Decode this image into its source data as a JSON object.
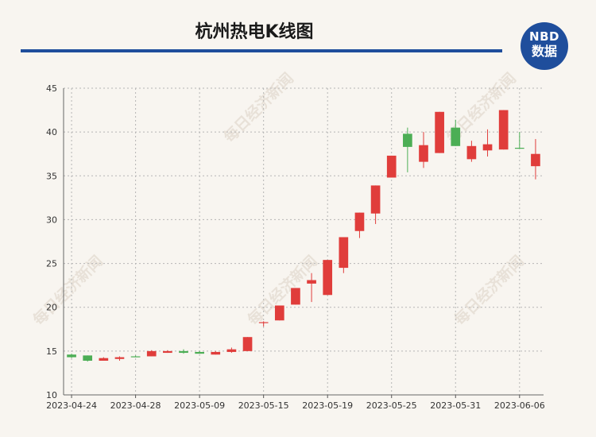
{
  "title": "杭州热电K线图",
  "logo": {
    "line1": "NBD",
    "line2": "数据"
  },
  "watermark": "每日经济新闻",
  "colors": {
    "up": "#e03d3b",
    "down": "#4cae55",
    "rule": "#1f4e9c",
    "grid": "#b5b5b5"
  },
  "chart_data": {
    "type": "candlestick",
    "title": "杭州热电K线图",
    "ylim": [
      10,
      45
    ],
    "yticks": [
      10,
      15,
      20,
      25,
      30,
      35,
      40,
      45
    ],
    "xtick_labels": [
      "2023-04-24",
      "2023-04-28",
      "2023-05-09",
      "2023-05-15",
      "2023-05-19",
      "2023-05-25",
      "2023-05-31",
      "2023-06-06"
    ],
    "xtick_index": [
      0,
      4,
      8,
      12,
      16,
      20,
      24,
      28
    ],
    "grid": true,
    "candles": [
      {
        "date": "2023-04-24",
        "open": 14.6,
        "close": 14.3,
        "high": 14.7,
        "low": 14.2
      },
      {
        "date": "2023-04-25",
        "open": 14.5,
        "close": 13.9,
        "high": 14.5,
        "low": 13.8
      },
      {
        "date": "2023-04-26",
        "open": 13.9,
        "close": 14.2,
        "high": 14.3,
        "low": 13.9
      },
      {
        "date": "2023-04-27",
        "open": 14.1,
        "close": 14.3,
        "high": 14.4,
        "low": 13.9
      },
      {
        "date": "2023-04-28",
        "open": 14.4,
        "close": 14.3,
        "high": 14.5,
        "low": 14.3
      },
      {
        "date": "2023-05-04",
        "open": 14.4,
        "close": 15.0,
        "high": 15.1,
        "low": 14.4
      },
      {
        "date": "2023-05-05",
        "open": 14.8,
        "close": 15.0,
        "high": 15.1,
        "low": 14.8
      },
      {
        "date": "2023-05-08",
        "open": 15.0,
        "close": 14.8,
        "high": 15.2,
        "low": 14.7
      },
      {
        "date": "2023-05-09",
        "open": 14.9,
        "close": 14.7,
        "high": 15.0,
        "low": 14.7
      },
      {
        "date": "2023-05-10",
        "open": 14.6,
        "close": 14.9,
        "high": 15.0,
        "low": 14.6
      },
      {
        "date": "2023-05-11",
        "open": 14.9,
        "close": 15.2,
        "high": 15.4,
        "low": 14.8
      },
      {
        "date": "2023-05-12",
        "open": 15.0,
        "close": 16.6,
        "high": 16.6,
        "low": 15.0
      },
      {
        "date": "2023-05-15",
        "open": 18.2,
        "close": 18.3,
        "high": 18.4,
        "low": 17.8
      },
      {
        "date": "2023-05-16",
        "open": 18.5,
        "close": 20.2,
        "high": 20.2,
        "low": 18.5
      },
      {
        "date": "2023-05-17",
        "open": 20.3,
        "close": 22.2,
        "high": 22.2,
        "low": 20.3
      },
      {
        "date": "2023-05-18",
        "open": 22.7,
        "close": 23.1,
        "high": 23.9,
        "low": 20.6
      },
      {
        "date": "2023-05-19",
        "open": 21.4,
        "close": 25.4,
        "high": 25.4,
        "low": 21.4
      },
      {
        "date": "2023-05-22",
        "open": 24.5,
        "close": 28.0,
        "high": 28.0,
        "low": 23.9
      },
      {
        "date": "2023-05-23",
        "open": 28.7,
        "close": 30.8,
        "high": 30.8,
        "low": 27.9
      },
      {
        "date": "2023-05-24",
        "open": 30.7,
        "close": 33.9,
        "high": 33.9,
        "low": 29.5
      },
      {
        "date": "2023-05-25",
        "open": 34.8,
        "close": 37.3,
        "high": 37.3,
        "low": 34.8
      },
      {
        "date": "2023-05-26",
        "open": 39.8,
        "close": 38.3,
        "high": 40.5,
        "low": 35.4
      },
      {
        "date": "2023-05-29",
        "open": 36.6,
        "close": 38.5,
        "high": 40.0,
        "low": 35.9
      },
      {
        "date": "2023-05-30",
        "open": 37.6,
        "close": 42.3,
        "high": 42.3,
        "low": 37.6
      },
      {
        "date": "2023-05-31",
        "open": 40.5,
        "close": 38.4,
        "high": 41.4,
        "low": 38.4
      },
      {
        "date": "2023-06-01",
        "open": 36.9,
        "close": 38.4,
        "high": 39.0,
        "low": 36.6
      },
      {
        "date": "2023-06-02",
        "open": 37.9,
        "close": 38.6,
        "high": 40.3,
        "low": 37.2
      },
      {
        "date": "2023-06-05",
        "open": 38.0,
        "close": 42.5,
        "high": 42.5,
        "low": 38.0
      },
      {
        "date": "2023-06-06",
        "open": 38.2,
        "close": 38.1,
        "high": 40.0,
        "low": 38.1
      },
      {
        "date": "2023-06-07",
        "open": 36.1,
        "close": 37.5,
        "high": 39.2,
        "low": 34.6
      }
    ]
  }
}
